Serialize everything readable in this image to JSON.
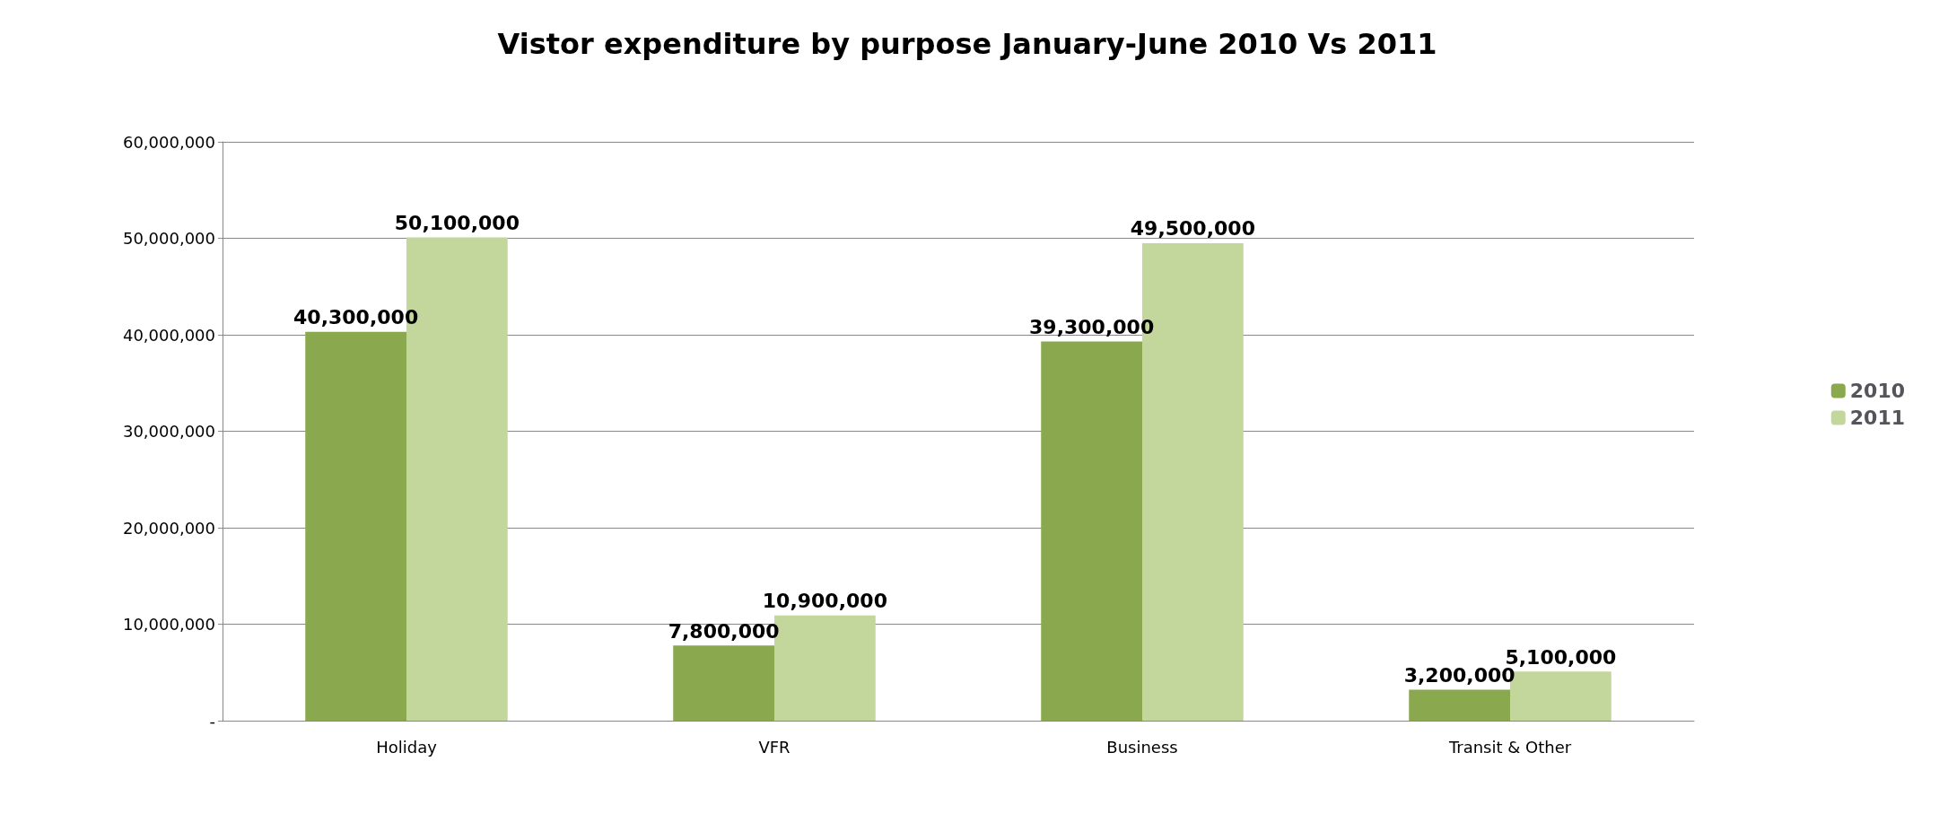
{
  "chart_data": {
    "type": "bar",
    "title": "Vistor expenditure by purpose January-June 2010 Vs 2011",
    "categories": [
      "Holiday",
      "VFR",
      "Business",
      "Transit & Other"
    ],
    "series": [
      {
        "name": "2010",
        "color": "#8aa84e",
        "values": [
          40300000,
          7800000,
          39300000,
          3200000
        ],
        "value_labels": [
          "40,300,000",
          "7,800,000",
          "39,300,000",
          "3,200,000"
        ]
      },
      {
        "name": "2011",
        "color": "#c3d69b",
        "values": [
          50100000,
          10900000,
          49500000,
          5100000
        ],
        "value_labels": [
          "50,100,000",
          "10,900,000",
          "49,500,000",
          "5,100,000"
        ]
      }
    ],
    "ylim": [
      0,
      60000000
    ],
    "yticks": [
      {
        "value": 0,
        "label": "-"
      },
      {
        "value": 10000000,
        "label": "10,000,000"
      },
      {
        "value": 20000000,
        "label": "20,000,000"
      },
      {
        "value": 30000000,
        "label": "30,000,000"
      },
      {
        "value": 40000000,
        "label": "40,000,000"
      },
      {
        "value": 50000000,
        "label": "50,000,000"
      },
      {
        "value": 60000000,
        "label": "60,000,000"
      }
    ],
    "grid": "y",
    "legend": "right"
  }
}
